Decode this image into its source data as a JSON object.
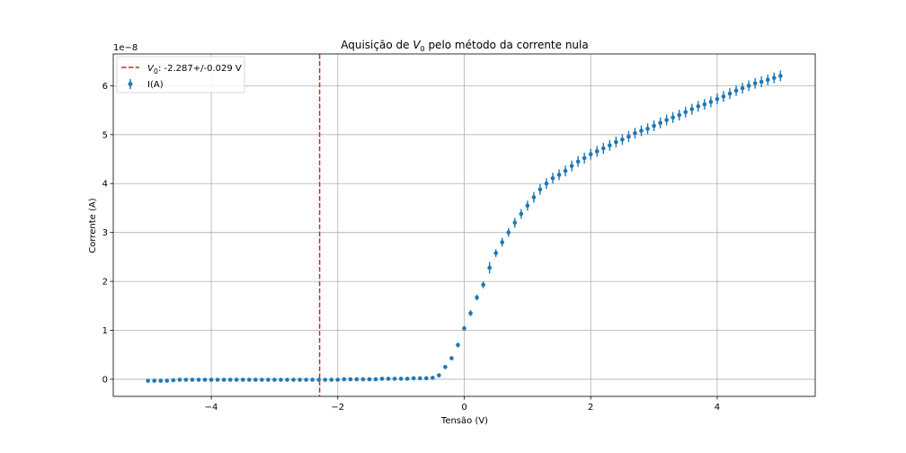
{
  "chart_data": {
    "type": "scatter",
    "title_prefix": "Aquisição de ",
    "title_var": "V",
    "title_sub": "0",
    "title_suffix": " pelo método da corrente nula",
    "xlabel": "Tensão (V)",
    "ylabel": "Corrente (A)",
    "y_offset_text": "1e−8",
    "xlim": [
      -5.55,
      5.55
    ],
    "ylim": [
      -0.35,
      6.65
    ],
    "xticks": [
      -4,
      -2,
      0,
      2,
      4
    ],
    "xtick_labels": [
      "−4",
      "−2",
      "0",
      "2",
      "4"
    ],
    "yticks": [
      0,
      1,
      2,
      3,
      4,
      5,
      6
    ],
    "ytick_labels": [
      "0",
      "1",
      "2",
      "3",
      "4",
      "5",
      "6"
    ],
    "grid": true,
    "legend_position": "top-left",
    "vline": {
      "x": -2.287,
      "color": "#d62728",
      "legend_var": "V",
      "legend_sub": "0",
      "legend_suffix": ": -2.287+/-0.029 V"
    },
    "series": [
      {
        "name": "I(A)",
        "color": "#1f77b4",
        "x": [
          -5.0,
          -4.9,
          -4.8,
          -4.7,
          -4.6,
          -4.5,
          -4.4,
          -4.3,
          -4.2,
          -4.1,
          -4.0,
          -3.9,
          -3.8,
          -3.7,
          -3.6,
          -3.5,
          -3.4,
          -3.3,
          -3.2,
          -3.1,
          -3.0,
          -2.9,
          -2.8,
          -2.7,
          -2.6,
          -2.5,
          -2.4,
          -2.3,
          -2.2,
          -2.1,
          -2.0,
          -1.9,
          -1.8,
          -1.7,
          -1.6,
          -1.5,
          -1.4,
          -1.3,
          -1.2,
          -1.1,
          -1.0,
          -0.9,
          -0.8,
          -0.7,
          -0.6,
          -0.5,
          -0.4,
          -0.3,
          -0.2,
          -0.1,
          0.0,
          0.1,
          0.2,
          0.3,
          0.4,
          0.5,
          0.6,
          0.7,
          0.8,
          0.9,
          1.0,
          1.1,
          1.2,
          1.3,
          1.4,
          1.5,
          1.6,
          1.7,
          1.8,
          1.9,
          2.0,
          2.1,
          2.2,
          2.3,
          2.4,
          2.5,
          2.6,
          2.7,
          2.8,
          2.9,
          3.0,
          3.1,
          3.2,
          3.3,
          3.4,
          3.5,
          3.6,
          3.7,
          3.8,
          3.9,
          4.0,
          4.1,
          4.2,
          4.3,
          4.4,
          4.5,
          4.6,
          4.7,
          4.8,
          4.9,
          5.0
        ],
        "y": [
          -0.03,
          -0.03,
          -0.03,
          -0.03,
          -0.02,
          -0.01,
          -0.01,
          -0.01,
          -0.01,
          -0.01,
          -0.01,
          -0.01,
          -0.01,
          -0.01,
          -0.01,
          -0.01,
          -0.01,
          -0.01,
          -0.01,
          -0.01,
          -0.01,
          -0.01,
          -0.01,
          -0.01,
          -0.01,
          -0.01,
          -0.01,
          -0.01,
          -0.01,
          -0.01,
          -0.01,
          0.0,
          0.0,
          0.0,
          0.0,
          0.0,
          0.0,
          0.01,
          0.01,
          0.01,
          0.01,
          0.01,
          0.02,
          0.02,
          0.02,
          0.03,
          0.08,
          0.25,
          0.43,
          0.7,
          1.04,
          1.35,
          1.67,
          1.93,
          2.28,
          2.58,
          2.8,
          3.0,
          3.2,
          3.38,
          3.55,
          3.72,
          3.88,
          4.0,
          4.11,
          4.18,
          4.26,
          4.36,
          4.45,
          4.52,
          4.6,
          4.66,
          4.72,
          4.78,
          4.85,
          4.9,
          4.96,
          5.03,
          5.08,
          5.12,
          5.18,
          5.24,
          5.3,
          5.35,
          5.4,
          5.46,
          5.52,
          5.58,
          5.62,
          5.67,
          5.73,
          5.78,
          5.84,
          5.9,
          5.95,
          6.0,
          6.05,
          6.08,
          6.12,
          6.16,
          6.2
        ],
        "yerr": [
          0.03,
          0.03,
          0.03,
          0.03,
          0.03,
          0.03,
          0.03,
          0.03,
          0.03,
          0.03,
          0.03,
          0.03,
          0.03,
          0.03,
          0.03,
          0.03,
          0.03,
          0.03,
          0.03,
          0.03,
          0.03,
          0.03,
          0.03,
          0.03,
          0.03,
          0.03,
          0.03,
          0.03,
          0.03,
          0.03,
          0.03,
          0.03,
          0.03,
          0.03,
          0.03,
          0.03,
          0.03,
          0.03,
          0.03,
          0.03,
          0.03,
          0.03,
          0.03,
          0.03,
          0.03,
          0.03,
          0.03,
          0.04,
          0.04,
          0.05,
          0.05,
          0.06,
          0.06,
          0.07,
          0.12,
          0.08,
          0.09,
          0.09,
          0.1,
          0.1,
          0.1,
          0.11,
          0.11,
          0.11,
          0.11,
          0.11,
          0.11,
          0.11,
          0.11,
          0.11,
          0.11,
          0.11,
          0.11,
          0.11,
          0.11,
          0.11,
          0.11,
          0.11,
          0.11,
          0.11,
          0.11,
          0.11,
          0.11,
          0.11,
          0.11,
          0.11,
          0.11,
          0.11,
          0.11,
          0.11,
          0.11,
          0.11,
          0.11,
          0.11,
          0.11,
          0.11,
          0.11,
          0.11,
          0.11,
          0.11,
          0.11
        ]
      }
    ]
  }
}
